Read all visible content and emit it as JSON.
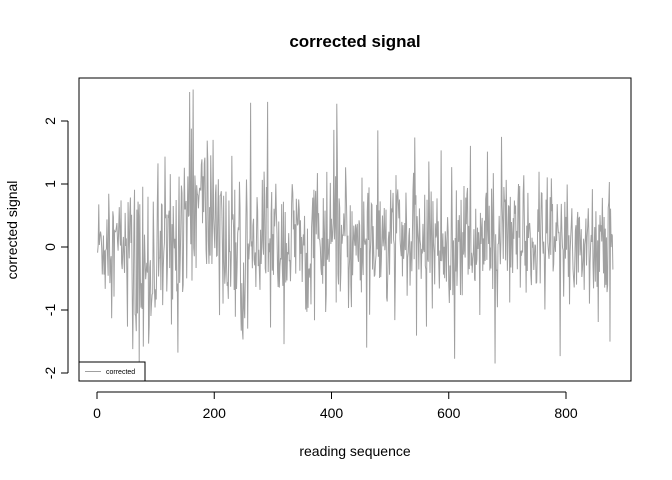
{
  "chart_data": {
    "type": "line",
    "title": "corrected signal",
    "xlabel": "reading sequence",
    "ylabel": "corrected signal",
    "xlim": [
      0,
      880
    ],
    "ylim": [
      -2.0,
      2.5
    ],
    "xticks": [
      0,
      200,
      400,
      600,
      800
    ],
    "yticks": [
      -2,
      -1,
      0,
      1,
      2
    ],
    "grid": false,
    "legend_position": "bottom-left",
    "series": [
      {
        "name": "corrected",
        "color": "#a0a0a0",
        "x_start": 1,
        "x_end": 880,
        "points_count": 880,
        "generator_note": "noisy trace: baseline ~0; dips toward -1.8 near x 60-90; elevated ~0.5-2.5 near x 150-210; band roughly -1 to 1.5 for x 220-880",
        "peak_max": 2.5,
        "trough_min": -1.85
      }
    ]
  }
}
